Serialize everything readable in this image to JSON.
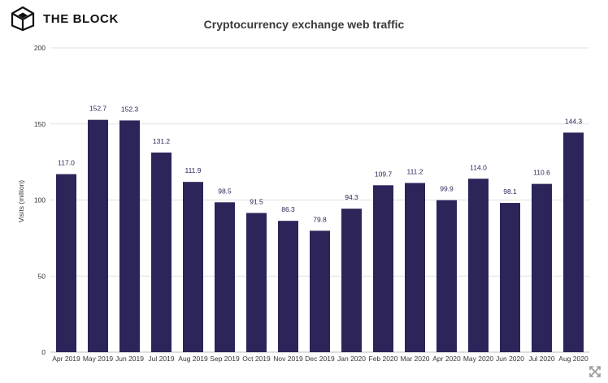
{
  "brand": {
    "name": "THE BLOCK",
    "logo_icon": "cube-logo-icon"
  },
  "chart_data": {
    "type": "bar",
    "title": "Cryptocurrency exchange web traffic",
    "xlabel": "",
    "ylabel": "Visits (million)",
    "ylim": [
      0,
      200
    ],
    "yticks": [
      0,
      50,
      100,
      150,
      200
    ],
    "grid": true,
    "categories": [
      "Apr 2019",
      "May 2019",
      "Jun 2019",
      "Jul 2019",
      "Aug 2019",
      "Sep 2019",
      "Oct 2019",
      "Nov 2019",
      "Dec 2019",
      "Jan 2020",
      "Feb 2020",
      "Mar 2020",
      "Apr 2020",
      "May 2020",
      "Jun 2020",
      "Jul 2020",
      "Aug 2020"
    ],
    "values": [
      117.0,
      152.7,
      152.3,
      131.2,
      111.9,
      98.5,
      91.5,
      86.3,
      79.8,
      94.3,
      109.7,
      111.2,
      99.9,
      114.0,
      98.1,
      110.6,
      144.3
    ],
    "value_labels": [
      "117.0",
      "152.7",
      "152.3",
      "131.2",
      "111.9",
      "98.5",
      "91.5",
      "86.3",
      "79.8",
      "94.3",
      "109.7",
      "111.2",
      "99.9",
      "114.0",
      "98.1",
      "110.6",
      "144.3"
    ],
    "bar_color": "#2b2559",
    "label_color": "#2b2559",
    "grid_color": "#e2e2e2"
  },
  "ui": {
    "expand_icon": "expand-icon"
  }
}
